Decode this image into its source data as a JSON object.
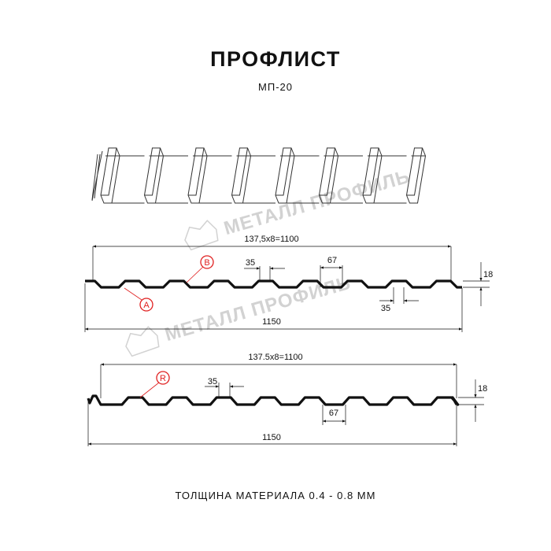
{
  "header": {
    "title": "ПРОФЛИСТ",
    "subtitle": "МП-20"
  },
  "watermark": {
    "text": "МЕТАЛЛ ПРОФИЛЬ"
  },
  "profile_top": {
    "pitch_dim": "137,5x8=1100",
    "total_dim": "1150",
    "top_width": "35",
    "bottom_width": "35",
    "rib_gap": "67",
    "height": "18",
    "marker_a": "A",
    "marker_b": "B"
  },
  "profile_bottom": {
    "pitch_dim": "137.5x8=1100",
    "total_dim": "1150",
    "top_width": "35",
    "rib_gap": "67",
    "height": "18",
    "marker_r": "R"
  },
  "footer": {
    "text": "ТОЛЩИНА МАТЕРИАЛА 0.4 - 0.8 ММ"
  },
  "colors": {
    "line": "#111111",
    "marker": "#e02020",
    "watermark": "#d2d2d2"
  }
}
